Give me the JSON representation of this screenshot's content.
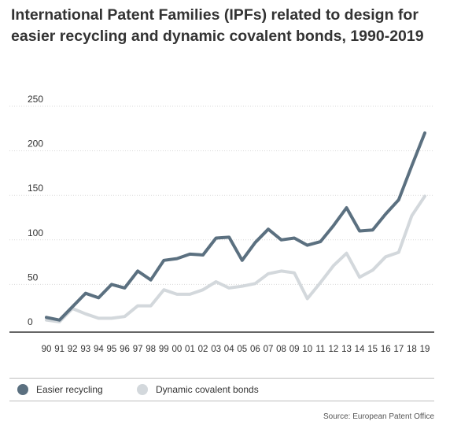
{
  "title": "International Patent Families (IPFs) related to design for easier recycling and dynamic covalent bonds, 1990-2019",
  "source": "Source: European Patent Office",
  "colors": {
    "easier_recycling": "#5b7080",
    "dynamic_covalent": "#d3d8dc",
    "grid": "#d9d9d9",
    "axis": "#333333"
  },
  "chart_data": {
    "type": "line",
    "title": "International Patent Families (IPFs) related to design for easier recycling and dynamic covalent bonds, 1990-2019",
    "xlabel": "",
    "ylabel": "",
    "x": [
      "90",
      "91",
      "92",
      "93",
      "94",
      "95",
      "96",
      "97",
      "98",
      "99",
      "00",
      "01",
      "02",
      "03",
      "04",
      "05",
      "06",
      "07",
      "08",
      "09",
      "10",
      "11",
      "12",
      "13",
      "14",
      "15",
      "16",
      "17",
      "18",
      "19"
    ],
    "ylim": [
      0,
      250
    ],
    "yticks": [
      0,
      50,
      100,
      150,
      200,
      250
    ],
    "grid": true,
    "legend": "bottom",
    "series": [
      {
        "name": "Easier recycling",
        "values": [
          13,
          10,
          25,
          40,
          35,
          50,
          46,
          65,
          55,
          77,
          79,
          84,
          83,
          102,
          103,
          77,
          97,
          112,
          100,
          102,
          94,
          98,
          116,
          136,
          110,
          111,
          129,
          145,
          183,
          220
        ]
      },
      {
        "name": "Dynamic covalent bonds",
        "values": [
          10,
          8,
          23,
          17,
          12,
          12,
          14,
          26,
          26,
          44,
          39,
          39,
          44,
          53,
          46,
          48,
          51,
          62,
          65,
          63,
          34,
          52,
          71,
          85,
          58,
          66,
          81,
          86,
          127,
          149
        ]
      }
    ]
  }
}
